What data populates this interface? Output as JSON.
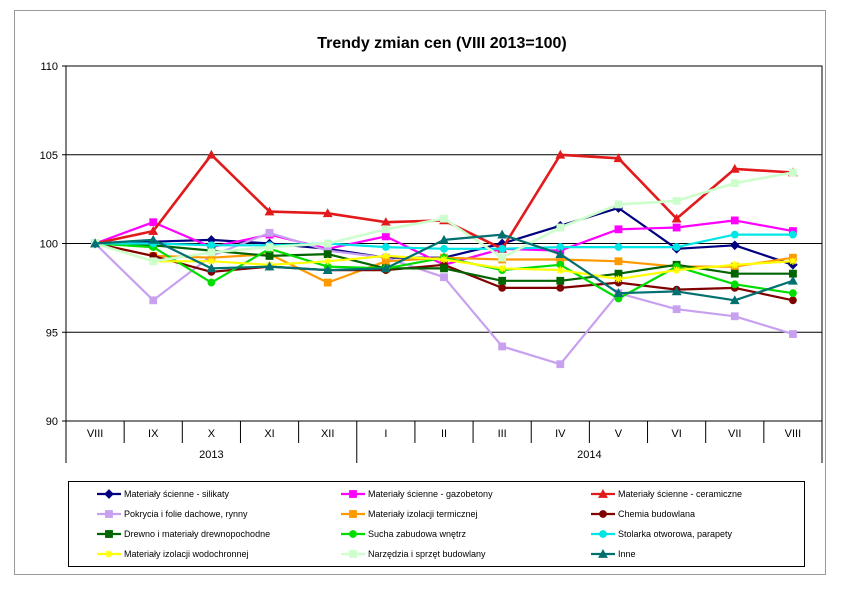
{
  "chart_data": {
    "type": "line",
    "title": "Trendy zmian cen (VIII 2013=100)",
    "xlabel": "",
    "ylabel": "",
    "ylim": [
      90,
      110
    ],
    "yticks": [
      90,
      95,
      100,
      105,
      110
    ],
    "grid": "horizontal",
    "legend_position": "bottom",
    "categories": [
      "VIII",
      "IX",
      "X",
      "XI",
      "XII",
      "I",
      "II",
      "III",
      "IV",
      "V",
      "VI",
      "VII",
      "VIII"
    ],
    "year_groups": [
      {
        "label": "2013",
        "span": 5
      },
      {
        "label": "2014",
        "span": 8
      }
    ],
    "series": [
      {
        "name": "Materiały ścienne - silikaty",
        "color": "#000080",
        "marker": "diamond",
        "values": [
          100,
          100.1,
          100.2,
          100.0,
          99.7,
          99.2,
          99.2,
          100.0,
          101.0,
          102.0,
          99.7,
          99.9,
          98.8
        ]
      },
      {
        "name": "Materiały ścienne - gazobetony",
        "color": "#ff00ff",
        "marker": "square",
        "values": [
          100,
          101.2,
          99.8,
          100.5,
          99.7,
          100.4,
          98.8,
          99.7,
          99.6,
          100.8,
          100.9,
          101.3,
          100.7
        ]
      },
      {
        "name": "Materiały ścienne - ceramiczne",
        "color": "#e31a1c",
        "marker": "triangle",
        "values": [
          100,
          100.7,
          105.0,
          101.8,
          101.7,
          101.2,
          101.3,
          99.7,
          105.0,
          104.8,
          101.4,
          104.2,
          104.0
        ]
      },
      {
        "name": "Pokrycia i folie dachowe, rynny",
        "color": "#c8a0f0",
        "marker": "square",
        "values": [
          100,
          96.8,
          99.3,
          100.6,
          99.6,
          99.2,
          98.1,
          94.2,
          93.2,
          97.2,
          96.3,
          95.9,
          94.9
        ]
      },
      {
        "name": "Materiały izolacji termicznej",
        "color": "#ff9900",
        "marker": "square",
        "values": [
          100,
          99.3,
          99.2,
          99.4,
          97.8,
          99.0,
          99.2,
          99.1,
          99.1,
          99.0,
          98.7,
          98.7,
          99.2
        ]
      },
      {
        "name": "Chemia budowlana",
        "color": "#800000",
        "marker": "circle",
        "values": [
          100,
          99.3,
          98.4,
          98.7,
          98.5,
          98.5,
          98.8,
          97.5,
          97.5,
          97.8,
          97.4,
          97.5,
          96.8
        ]
      },
      {
        "name": "Drewno i materiały drewnopochodne",
        "color": "#006400",
        "marker": "square",
        "values": [
          100,
          99.9,
          99.6,
          99.3,
          99.4,
          98.6,
          98.6,
          97.9,
          97.9,
          98.3,
          98.8,
          98.3,
          98.3
        ]
      },
      {
        "name": "Sucha zabudowa wnętrz",
        "color": "#00dd00",
        "marker": "circle",
        "values": [
          100,
          99.8,
          97.8,
          99.7,
          98.7,
          98.6,
          99.2,
          98.5,
          98.8,
          96.9,
          98.7,
          97.7,
          97.2
        ]
      },
      {
        "name": "Stolarka otworowa, parapety",
        "color": "#00e5e5",
        "marker": "circle",
        "values": [
          100,
          100.0,
          99.9,
          99.9,
          100.0,
          99.8,
          99.7,
          99.7,
          99.8,
          99.8,
          99.8,
          100.5,
          100.5
        ]
      },
      {
        "name": "Materiały izolacji wodochronnej",
        "color": "#ffff00",
        "marker": "star",
        "values": [
          100,
          99.0,
          99.0,
          98.8,
          99.0,
          99.3,
          99.1,
          98.6,
          98.5,
          98.0,
          98.5,
          98.8,
          99.0
        ]
      },
      {
        "name": "Narzędzia i sprzęt budowlany",
        "color": "#ccffcc",
        "marker": "square",
        "values": [
          100,
          99.0,
          99.5,
          99.8,
          100.0,
          100.8,
          101.4,
          99.2,
          100.9,
          102.2,
          102.4,
          103.4,
          104.0
        ]
      },
      {
        "name": "Inne",
        "color": "#007070",
        "marker": "triangle",
        "values": [
          100,
          100.2,
          98.6,
          98.7,
          98.5,
          98.6,
          100.2,
          100.5,
          99.4,
          97.2,
          97.3,
          96.8,
          97.9
        ]
      }
    ]
  }
}
